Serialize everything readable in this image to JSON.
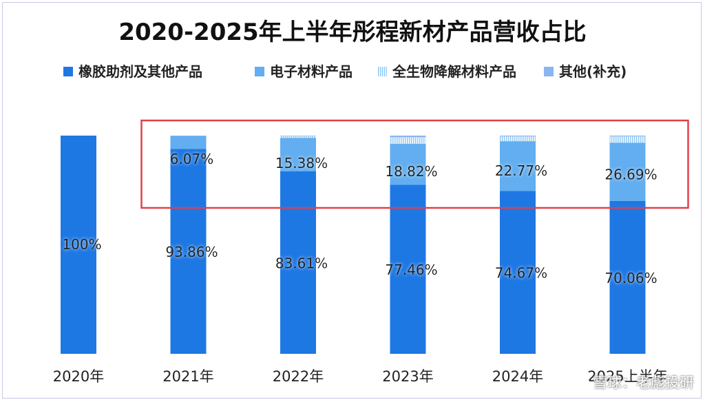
{
  "chart_data": {
    "type": "bar",
    "stacked": true,
    "title": "2020-2025年上半年彤程新材产品营收占比",
    "categories": [
      "2020年",
      "2021年",
      "2022年",
      "2023年",
      "2024年",
      "2025上半年"
    ],
    "series": [
      {
        "name": "橡胶助剂及其他产品",
        "color": "#1e78e4",
        "values": [
          100,
          93.86,
          83.61,
          77.46,
          74.67,
          70.06
        ],
        "labels": [
          "100%",
          "93.86%",
          "83.61%",
          "77.46%",
          "74.67%",
          "70.06%"
        ]
      },
      {
        "name": "电子材料产品",
        "color": "#62aef0",
        "values": [
          0,
          6.07,
          15.38,
          18.82,
          22.77,
          26.69
        ],
        "labels": [
          "",
          "6.07%",
          "15.38%",
          "18.82%",
          "22.77%",
          "26.69%"
        ]
      },
      {
        "name": "全生物降解材料产品",
        "color": "#8ec8f4",
        "pattern": "vertical-lines",
        "values": [
          0,
          0,
          0.8,
          3.0,
          2.2,
          2.9
        ],
        "labels": [
          "",
          "",
          "",
          "",
          "",
          ""
        ]
      },
      {
        "name": "其他(补充)",
        "color": "#8ab4f2",
        "values": [
          0,
          0.07,
          0.21,
          0.72,
          0.36,
          0.35
        ],
        "labels": [
          "",
          "",
          "",
          "",
          "",
          ""
        ]
      }
    ],
    "ylim": [
      0,
      100
    ],
    "grid": false,
    "legend": "top",
    "highlight_box": {
      "from_category": 1,
      "to_category": 5,
      "color": "#e0404a"
    }
  },
  "watermark": {
    "text": "雪球：老彪投研"
  }
}
